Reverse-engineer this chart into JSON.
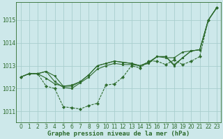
{
  "title": "Graphe pression niveau de la mer (hPa)",
  "background_color": "#cde8ea",
  "grid_color": "#a8cece",
  "line_color": "#2d6b2d",
  "xlim": [
    -0.5,
    23.5
  ],
  "ylim": [
    1010.5,
    1015.8
  ],
  "yticks": [
    1011,
    1012,
    1013,
    1014,
    1015
  ],
  "xticks": [
    0,
    1,
    2,
    3,
    4,
    5,
    6,
    7,
    8,
    9,
    10,
    11,
    12,
    13,
    14,
    15,
    16,
    17,
    18,
    19,
    20,
    21,
    22,
    23
  ],
  "seriesA": [
    1012.5,
    1012.65,
    1012.65,
    1012.75,
    1012.3,
    1012.05,
    1012.0,
    1012.25,
    1012.5,
    1012.85,
    1013.0,
    1013.1,
    1013.05,
    1013.05,
    1013.0,
    1013.1,
    1013.4,
    1013.35,
    1013.35,
    1013.6,
    1013.65,
    1013.7,
    1015.0,
    1015.55
  ],
  "seriesB": [
    1012.5,
    1012.65,
    1012.65,
    1012.75,
    1012.55,
    1012.1,
    1012.15,
    1012.3,
    1012.6,
    1013.0,
    1013.1,
    1013.2,
    1013.15,
    1013.1,
    1013.0,
    1013.15,
    1013.4,
    1013.4,
    1013.0,
    1013.35,
    1013.65,
    1013.7,
    1015.0,
    1015.55
  ],
  "seriesC": [
    1012.5,
    1012.65,
    1012.65,
    1012.45,
    1012.2,
    1012.1,
    1012.1,
    1012.3,
    1012.6,
    1013.0,
    1013.1,
    1013.2,
    1013.15,
    1013.1,
    1013.0,
    1013.15,
    1013.4,
    1013.4,
    1013.05,
    1013.35,
    1013.65,
    1013.7,
    1015.0,
    1015.55
  ],
  "seriesD": [
    1012.5,
    1012.65,
    1012.65,
    1012.1,
    1012.0,
    1011.2,
    1011.15,
    1011.1,
    1011.25,
    1011.35,
    1012.15,
    1012.2,
    1012.5,
    1013.0,
    1012.9,
    1013.2,
    1013.2,
    1013.05,
    1013.25,
    1013.05,
    1013.2,
    1013.4,
    1015.0,
    1015.55
  ],
  "tick_fontsize": 5.5,
  "label_fontsize": 6.5
}
